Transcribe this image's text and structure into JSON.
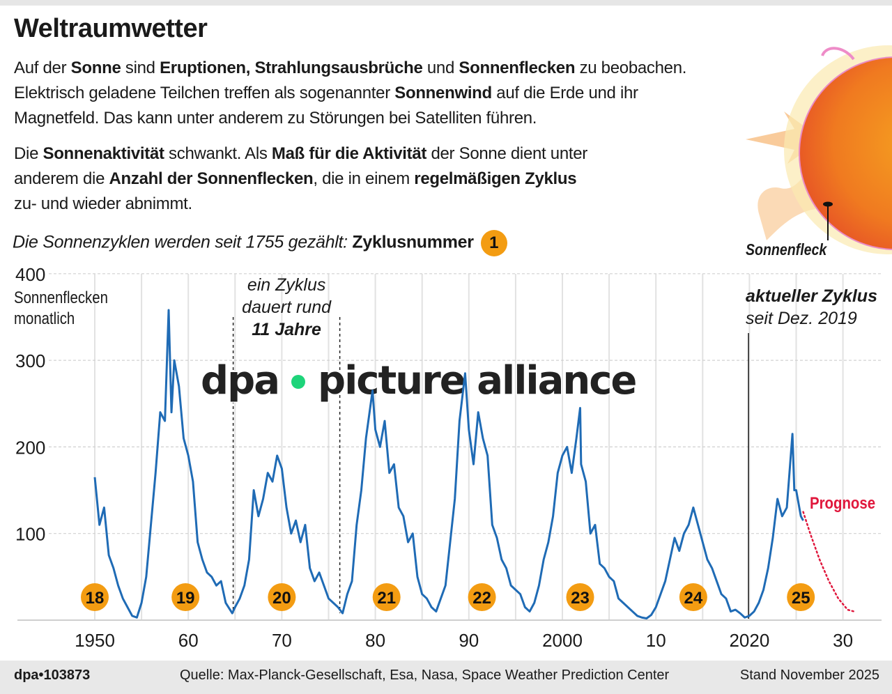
{
  "title": "Weltraumwetter",
  "paragraph1": [
    [
      {
        "t": "Auf der "
      },
      {
        "t": "Sonne",
        "b": true
      },
      {
        "t": " sind "
      },
      {
        "t": "Eruptionen, Strahlungsausbrüche",
        "b": true
      },
      {
        "t": " und "
      },
      {
        "t": "Sonnenflecken",
        "b": true
      },
      {
        "t": " zu beobachen."
      }
    ],
    [
      {
        "t": "Elektrisch geladene Teilchen treffen als sogenannter "
      },
      {
        "t": "Sonnenwind",
        "b": true
      },
      {
        "t": " auf die Erde und ihr"
      }
    ],
    [
      {
        "t": "Magnetfeld. Das kann unter anderem zu Störungen bei Satelliten führen."
      }
    ]
  ],
  "paragraph2": [
    [
      {
        "t": "Die "
      },
      {
        "t": "Sonnenaktivität",
        "b": true
      },
      {
        "t": " schwankt. Als "
      },
      {
        "t": "Maß für die Aktivität",
        "b": true
      },
      {
        "t": " der Sonne dient unter"
      }
    ],
    [
      {
        "t": "anderem die "
      },
      {
        "t": "Anzahl der Sonnenflecken",
        "b": true
      },
      {
        "t": ", die in einem "
      },
      {
        "t": "regelmäßigen Zyklus",
        "b": true
      }
    ],
    [
      {
        "t": "zu- und wieder abnimmt."
      }
    ]
  ],
  "intro": {
    "text": "Die Sonnenzyklen werden seit 1755 gezählt: ",
    "bold": "Zyklusnummer",
    "badge": "1"
  },
  "sun_label": "Sonnenfleck",
  "watermark": {
    "left": "dpa",
    "right": "picture alliance",
    "dot_color": "#1ed47a"
  },
  "chart_data": {
    "type": "line",
    "ylabel": "Sonnenflecken monatlich",
    "xlim": [
      1947,
      2034
    ],
    "ylim": [
      0,
      400
    ],
    "yticks": [
      100,
      200,
      300,
      400
    ],
    "xticks": [
      {
        "v": 1950,
        "label": "1950"
      },
      {
        "v": 1960,
        "label": "60"
      },
      {
        "v": 1970,
        "label": "70"
      },
      {
        "v": 1980,
        "label": "80"
      },
      {
        "v": 1990,
        "label": "90"
      },
      {
        "v": 2000,
        "label": "2000"
      },
      {
        "v": 2010,
        "label": "10"
      },
      {
        "v": 2020,
        "label": "2020"
      },
      {
        "v": 2030,
        "label": "30"
      }
    ],
    "grid": true,
    "line_color": "#1f6bb5",
    "series": [
      {
        "points": [
          [
            1950,
            165
          ],
          [
            1950.5,
            110
          ],
          [
            1951,
            130
          ],
          [
            1951.5,
            75
          ],
          [
            1952,
            60
          ],
          [
            1952.5,
            40
          ],
          [
            1953,
            25
          ],
          [
            1953.5,
            15
          ],
          [
            1954,
            5
          ],
          [
            1954.5,
            3
          ],
          [
            1955,
            20
          ],
          [
            1955.5,
            50
          ],
          [
            1956,
            110
          ],
          [
            1956.5,
            170
          ],
          [
            1957,
            240
          ],
          [
            1957.5,
            230
          ],
          [
            1957.9,
            358
          ],
          [
            1958.2,
            240
          ],
          [
            1958.5,
            300
          ],
          [
            1959,
            270
          ],
          [
            1959.5,
            210
          ],
          [
            1960,
            190
          ],
          [
            1960.5,
            160
          ],
          [
            1961,
            90
          ],
          [
            1961.5,
            70
          ],
          [
            1962,
            55
          ],
          [
            1962.5,
            50
          ],
          [
            1963,
            40
          ],
          [
            1963.5,
            45
          ],
          [
            1964,
            20
          ],
          [
            1964.7,
            8
          ],
          [
            1965,
            15
          ],
          [
            1965.5,
            25
          ],
          [
            1966,
            40
          ],
          [
            1966.5,
            70
          ],
          [
            1967,
            150
          ],
          [
            1967.5,
            120
          ],
          [
            1968,
            140
          ],
          [
            1968.5,
            170
          ],
          [
            1969,
            160
          ],
          [
            1969.5,
            190
          ],
          [
            1970,
            175
          ],
          [
            1970.5,
            130
          ],
          [
            1971,
            100
          ],
          [
            1971.5,
            115
          ],
          [
            1972,
            90
          ],
          [
            1972.5,
            110
          ],
          [
            1973,
            60
          ],
          [
            1973.5,
            45
          ],
          [
            1974,
            55
          ],
          [
            1974.5,
            40
          ],
          [
            1975,
            25
          ],
          [
            1975.5,
            20
          ],
          [
            1976,
            15
          ],
          [
            1976.5,
            8
          ],
          [
            1977,
            30
          ],
          [
            1977.5,
            45
          ],
          [
            1978,
            110
          ],
          [
            1978.5,
            150
          ],
          [
            1979,
            210
          ],
          [
            1979.7,
            265
          ],
          [
            1980,
            220
          ],
          [
            1980.5,
            200
          ],
          [
            1981,
            230
          ],
          [
            1981.5,
            170
          ],
          [
            1982,
            180
          ],
          [
            1982.5,
            130
          ],
          [
            1983,
            120
          ],
          [
            1983.5,
            90
          ],
          [
            1984,
            100
          ],
          [
            1984.5,
            50
          ],
          [
            1985,
            30
          ],
          [
            1985.5,
            25
          ],
          [
            1986,
            15
          ],
          [
            1986.5,
            10
          ],
          [
            1987,
            25
          ],
          [
            1987.5,
            40
          ],
          [
            1988,
            90
          ],
          [
            1988.5,
            140
          ],
          [
            1989,
            230
          ],
          [
            1989.6,
            285
          ],
          [
            1990,
            220
          ],
          [
            1990.5,
            180
          ],
          [
            1991,
            240
          ],
          [
            1991.5,
            210
          ],
          [
            1992,
            190
          ],
          [
            1992.5,
            110
          ],
          [
            1993,
            95
          ],
          [
            1993.5,
            70
          ],
          [
            1994,
            60
          ],
          [
            1994.5,
            40
          ],
          [
            1995,
            35
          ],
          [
            1995.5,
            30
          ],
          [
            1996,
            15
          ],
          [
            1996.5,
            10
          ],
          [
            1997,
            20
          ],
          [
            1997.5,
            40
          ],
          [
            1998,
            70
          ],
          [
            1998.5,
            90
          ],
          [
            1999,
            120
          ],
          [
            1999.5,
            170
          ],
          [
            2000,
            190
          ],
          [
            2000.5,
            200
          ],
          [
            2001,
            170
          ],
          [
            2001.5,
            210
          ],
          [
            2001.9,
            245
          ],
          [
            2002,
            180
          ],
          [
            2002.5,
            160
          ],
          [
            2003,
            100
          ],
          [
            2003.5,
            110
          ],
          [
            2004,
            65
          ],
          [
            2004.5,
            60
          ],
          [
            2005,
            50
          ],
          [
            2005.5,
            45
          ],
          [
            2006,
            25
          ],
          [
            2006.5,
            20
          ],
          [
            2007,
            15
          ],
          [
            2007.5,
            10
          ],
          [
            2008,
            5
          ],
          [
            2008.5,
            3
          ],
          [
            2009,
            2
          ],
          [
            2009.5,
            6
          ],
          [
            2010,
            15
          ],
          [
            2010.5,
            30
          ],
          [
            2011,
            45
          ],
          [
            2011.5,
            70
          ],
          [
            2012,
            95
          ],
          [
            2012.5,
            80
          ],
          [
            2013,
            100
          ],
          [
            2013.5,
            110
          ],
          [
            2014,
            130
          ],
          [
            2014.5,
            110
          ],
          [
            2015,
            90
          ],
          [
            2015.5,
            70
          ],
          [
            2016,
            60
          ],
          [
            2016.5,
            45
          ],
          [
            2017,
            30
          ],
          [
            2017.5,
            25
          ],
          [
            2018,
            10
          ],
          [
            2018.5,
            12
          ],
          [
            2019,
            8
          ],
          [
            2019.5,
            3
          ],
          [
            2020,
            5
          ],
          [
            2020.5,
            10
          ],
          [
            2021,
            20
          ],
          [
            2021.5,
            35
          ],
          [
            2022,
            60
          ],
          [
            2022.5,
            95
          ],
          [
            2023,
            140
          ],
          [
            2023.5,
            120
          ],
          [
            2024,
            130
          ],
          [
            2024.6,
            215
          ],
          [
            2024.8,
            150
          ],
          [
            2025,
            150
          ],
          [
            2025.5,
            120
          ],
          [
            2025.75,
            115
          ]
        ]
      }
    ],
    "forecast": {
      "label": "Prognose",
      "color": "#e0173c",
      "points": [
        [
          2025.75,
          125
        ],
        [
          2026.5,
          100
        ],
        [
          2027.5,
          70
        ],
        [
          2028.5,
          45
        ],
        [
          2029.5,
          25
        ],
        [
          2030.5,
          12
        ],
        [
          2031.2,
          10
        ]
      ]
    },
    "cycles": [
      {
        "n": "18",
        "x": 1950
      },
      {
        "n": "19",
        "x": 1959.7
      },
      {
        "n": "20",
        "x": 1970
      },
      {
        "n": "21",
        "x": 1981.2
      },
      {
        "n": "22",
        "x": 1991.4
      },
      {
        "n": "23",
        "x": 2001.9
      },
      {
        "n": "24",
        "x": 2014
      },
      {
        "n": "25",
        "x": 2025.5
      }
    ],
    "cycle_color": "#f39c12",
    "cycle_span": {
      "start": 1964.8,
      "end": 1976.2,
      "label1": "ein Zyklus",
      "label2": "dauert rund",
      "label3": "11 Jahre"
    },
    "current_cycle": {
      "x": 2019.9,
      "label1": "aktueller Zyklus",
      "label2": "seit Dez. 2019"
    }
  },
  "footer": {
    "id": "dpa•103873",
    "source": "Quelle: Max-Planck-Gesellschaft, Esa, Nasa, Space Weather Prediction Center",
    "date": "Stand November 2025"
  }
}
